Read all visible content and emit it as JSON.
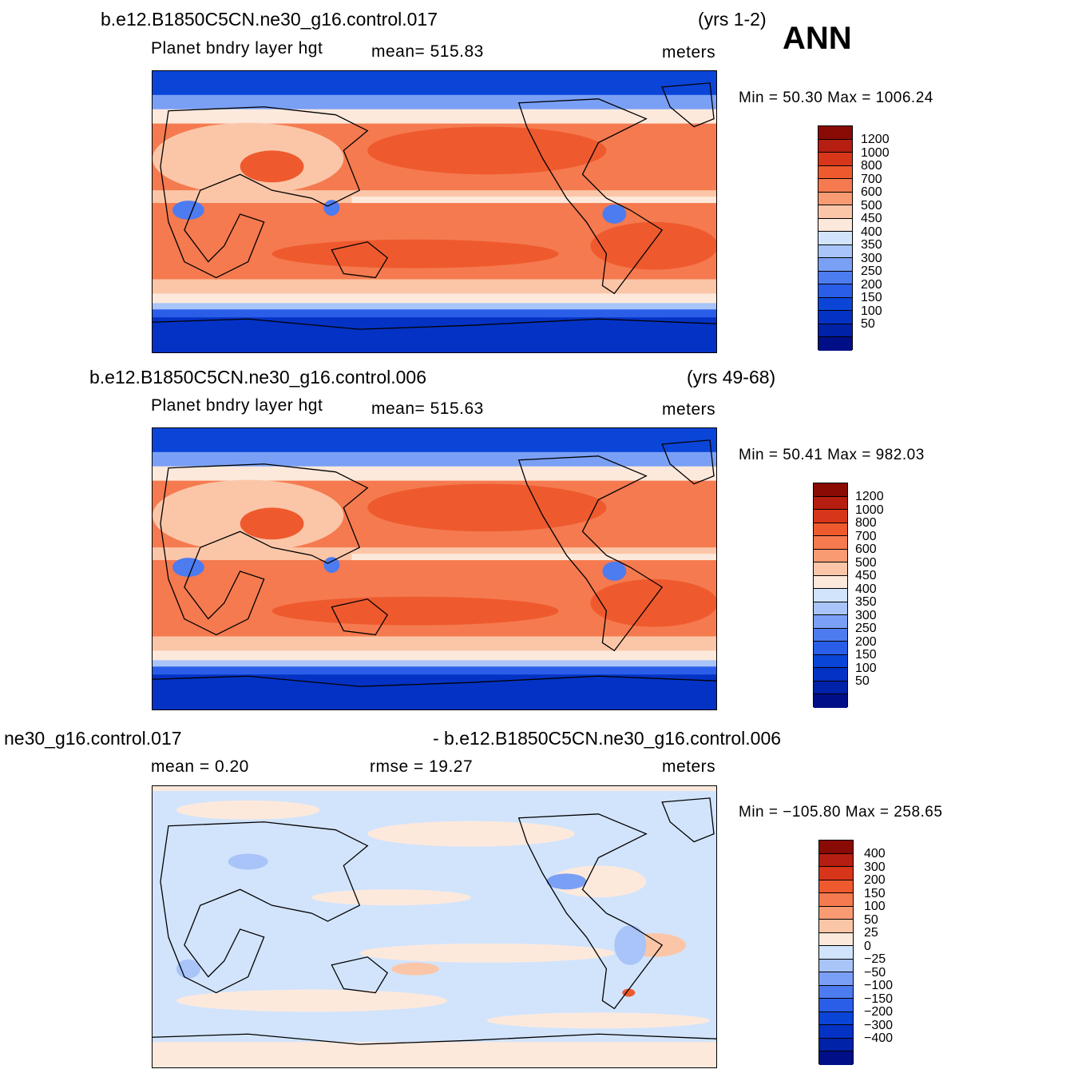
{
  "season": "ANN",
  "panels": [
    {
      "case": "b.e12.B1850C5CN.ne30_g16.control.017",
      "years": "(yrs 1-2)",
      "variable": "Planet bndry layer hgt",
      "stat": "mean= 515.83",
      "units": "meters",
      "minmax": "Min =   50.30  Max  =  1006.24",
      "labels": [
        "1200",
        "1000",
        "800",
        "700",
        "600",
        "500",
        "450",
        "400",
        "350",
        "300",
        "250",
        "200",
        "150",
        "100",
        "50"
      ]
    },
    {
      "case": "b.e12.B1850C5CN.ne30_g16.control.006",
      "years": "(yrs 49-68)",
      "variable": "Planet bndry layer hgt",
      "stat": "mean= 515.63",
      "units": "meters",
      "minmax": "Min =   50.41  Max  =  982.03",
      "labels": [
        "1200",
        "1000",
        "800",
        "700",
        "600",
        "500",
        "450",
        "400",
        "350",
        "300",
        "250",
        "200",
        "150",
        "100",
        "50"
      ]
    },
    {
      "case_left": "ne30_g16.control.017",
      "case_right": "- b.e12.B1850C5CN.ne30_g16.control.006",
      "stat_mean": "mean  =     0.20",
      "stat_rmse": "rmse  =    19.27",
      "units": "meters",
      "minmax": "Min  = −105.80  Max  =  258.65",
      "labels": [
        "400",
        "300",
        "200",
        "150",
        "100",
        "50",
        "25",
        "0",
        "−25",
        "−50",
        "−100",
        "−150",
        "−200",
        "−300",
        "−400"
      ]
    }
  ],
  "palette": [
    "#000f87",
    "#0022a8",
    "#0432c4",
    "#0b45d8",
    "#2a5ee8",
    "#4d7bf0",
    "#7aa0f5",
    "#a8c4f8",
    "#d2e4fc",
    "#fde9dc",
    "#fbc6a8",
    "#f89a72",
    "#f57a4f",
    "#ee5a2e",
    "#d8361a",
    "#b51e10",
    "#8a0a05"
  ]
}
